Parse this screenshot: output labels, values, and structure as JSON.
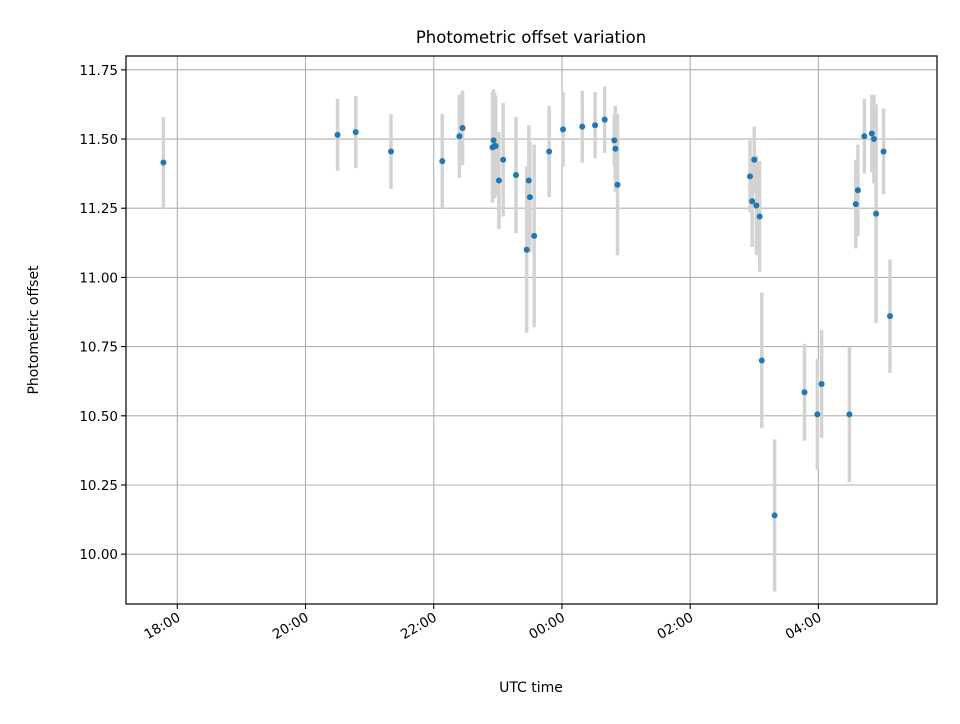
{
  "chart_data": {
    "type": "scatter",
    "title": "Photometric offset variation",
    "xlabel": "UTC time",
    "ylabel": "Photometric offset",
    "x_reference_date": "",
    "xlim_hours": [
      17.2,
      29.85
    ],
    "ylim": [
      9.82,
      11.8
    ],
    "x_ticks": [
      {
        "h": 18,
        "label": "18:00"
      },
      {
        "h": 20,
        "label": "20:00"
      },
      {
        "h": 22,
        "label": "22:00"
      },
      {
        "h": 24,
        "label": "00:00"
      },
      {
        "h": 26,
        "label": "02:00"
      },
      {
        "h": 28,
        "label": "04:00"
      }
    ],
    "y_ticks": [
      {
        "v": 10.0,
        "label": "10.00"
      },
      {
        "v": 10.25,
        "label": "10.25"
      },
      {
        "v": 10.5,
        "label": "10.50"
      },
      {
        "v": 10.75,
        "label": "10.75"
      },
      {
        "v": 11.0,
        "label": "11.00"
      },
      {
        "v": 11.25,
        "label": "11.25"
      },
      {
        "v": 11.5,
        "label": "11.50"
      },
      {
        "v": 11.75,
        "label": "11.75"
      }
    ],
    "grid": true,
    "legend": "none",
    "colors": {
      "points": "#1f77b4",
      "errorbars": "#d3d3d3",
      "grid": "#b0b0b0"
    },
    "series": [
      {
        "time": [
          "17:47",
          "20:30",
          "20:47",
          "21:20",
          "22:08",
          "22:24",
          "22:27",
          "22:55",
          "22:56",
          "22:57",
          "22:58",
          "23:01",
          "23:05",
          "23:17",
          "23:27",
          "23:29",
          "23:30",
          "23:34",
          "23:48",
          "24:01",
          "24:19",
          "24:31",
          "24:40",
          "24:49",
          "24:50",
          "24:52",
          "26:56",
          "26:58",
          "27:00",
          "27:02",
          "27:05",
          "27:07",
          "27:19",
          "27:47",
          "27:59",
          "28:03",
          "28:29",
          "28:35",
          "28:37",
          "28:43",
          "28:50",
          "28:52",
          "28:54",
          "29:01",
          "29:07"
        ],
        "values": [
          11.415,
          11.515,
          11.525,
          11.455,
          11.42,
          11.51,
          11.54,
          11.47,
          11.495,
          11.475,
          11.475,
          11.35,
          11.425,
          11.37,
          11.1,
          11.35,
          11.29,
          11.15,
          11.455,
          11.535,
          11.545,
          11.55,
          11.57,
          11.495,
          11.465,
          11.335,
          11.365,
          11.275,
          11.425,
          11.26,
          11.22,
          10.7,
          10.14,
          10.585,
          10.505,
          10.615,
          10.505,
          11.265,
          11.315,
          11.51,
          11.52,
          11.5,
          11.23,
          11.455,
          10.86
        ],
        "errors": [
          0.165,
          0.13,
          0.13,
          0.135,
          0.17,
          0.15,
          0.135,
          0.2,
          0.185,
          0.19,
          0.18,
          0.175,
          0.205,
          0.21,
          0.3,
          0.2,
          0.2,
          0.33,
          0.165,
          0.135,
          0.13,
          0.12,
          0.12,
          0.095,
          0.155,
          0.255,
          0.13,
          0.165,
          0.12,
          0.18,
          0.2,
          0.245,
          0.275,
          0.175,
          0.2,
          0.195,
          0.245,
          0.16,
          0.165,
          0.135,
          0.14,
          0.16,
          0.395,
          0.155,
          0.205
        ]
      }
    ]
  }
}
